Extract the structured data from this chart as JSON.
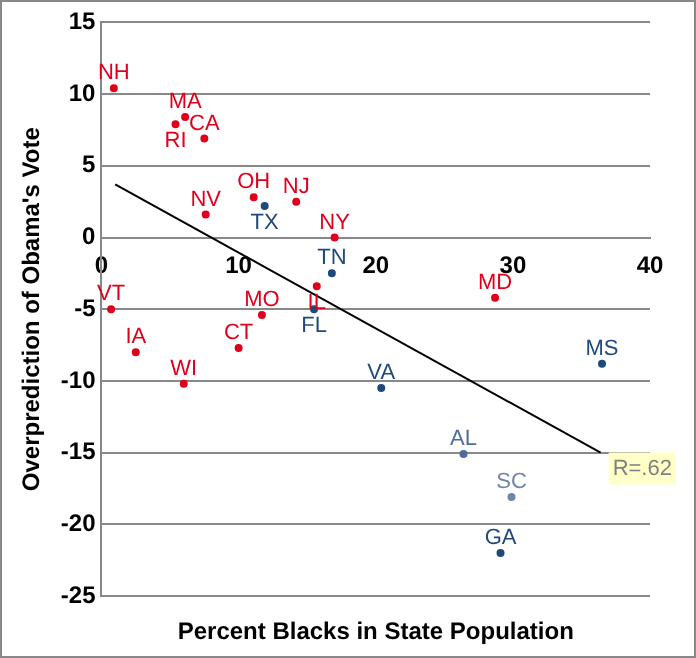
{
  "chart_data": {
    "type": "scatter",
    "xlabel": "Percent Blacks in State Population",
    "ylabel": "Overprediction of Obama's Vote",
    "xlim": [
      0,
      40
    ],
    "xticks": [
      0,
      10,
      20,
      30,
      40
    ],
    "ylim": [
      -25,
      15
    ],
    "yticks": [
      -25,
      -20,
      -15,
      -10,
      -5,
      0,
      5,
      10,
      15
    ],
    "grid": "y",
    "legend": false,
    "series": [
      {
        "name": "NH",
        "color": "#e0001b",
        "x": [
          0.9
        ],
        "values": [
          10.4
        ]
      },
      {
        "name": "MA",
        "color": "#e0001b",
        "x": [
          6.1
        ],
        "values": [
          8.4
        ]
      },
      {
        "name": "RI",
        "color": "#e0001b",
        "x": [
          5.4
        ],
        "values": [
          7.9
        ]
      },
      {
        "name": "CA",
        "color": "#e0001b",
        "x": [
          7.5
        ],
        "values": [
          6.9
        ]
      },
      {
        "name": "NV",
        "color": "#e0001b",
        "x": [
          7.6
        ],
        "values": [
          1.6
        ]
      },
      {
        "name": "OH",
        "color": "#e0001b",
        "x": [
          11.1
        ],
        "values": [
          2.8
        ]
      },
      {
        "name": "TX",
        "color": "#1f497d",
        "x": [
          11.9
        ],
        "values": [
          2.2
        ]
      },
      {
        "name": "NJ",
        "color": "#e0001b",
        "x": [
          14.2
        ],
        "values": [
          2.5
        ]
      },
      {
        "name": "NY",
        "color": "#e0001b",
        "x": [
          17.0
        ],
        "values": [
          0
        ]
      },
      {
        "name": "TN",
        "color": "#1f497d",
        "x": [
          16.8
        ],
        "values": [
          -2.5
        ]
      },
      {
        "name": "IL",
        "color": "#e0001b",
        "x": [
          15.7
        ],
        "values": [
          -3.4
        ]
      },
      {
        "name": "FL",
        "color": "#1f497d",
        "x": [
          15.5
        ],
        "values": [
          -5
        ]
      },
      {
        "name": "MO",
        "color": "#e0001b",
        "x": [
          11.7
        ],
        "values": [
          -5.4
        ]
      },
      {
        "name": "CT",
        "color": "#e0001b",
        "x": [
          10.0
        ],
        "values": [
          -7.7
        ]
      },
      {
        "name": "VT",
        "color": "#e0001b",
        "x": [
          0.7
        ],
        "values": [
          -5
        ]
      },
      {
        "name": "IA",
        "color": "#e0001b",
        "x": [
          2.5
        ],
        "values": [
          -8
        ]
      },
      {
        "name": "WI",
        "color": "#e0001b",
        "x": [
          6.0
        ],
        "values": [
          -10.2
        ]
      },
      {
        "name": "MD",
        "color": "#e0001b",
        "x": [
          28.7
        ],
        "values": [
          -4.2
        ]
      },
      {
        "name": "VA",
        "color": "#1f497d",
        "x": [
          20.4
        ],
        "values": [
          -10.5
        ]
      },
      {
        "name": "MS",
        "color": "#1f497d",
        "x": [
          36.5
        ],
        "values": [
          -8.8
        ]
      },
      {
        "name": "AL",
        "color": "#4f6d9a",
        "x": [
          26.4
        ],
        "values": [
          -15.1
        ]
      },
      {
        "name": "SC",
        "color": "#6f86a8",
        "x": [
          29.9
        ],
        "values": [
          -18.1
        ]
      },
      {
        "name": "GA",
        "color": "#1f497d",
        "x": [
          29.1
        ],
        "values": [
          -22.0
        ]
      },
      {
        "type": "line",
        "color": "#000000",
        "x": [
          1,
          36.4
        ],
        "values": [
          3.7,
          -15
        ]
      }
    ],
    "annotations": [
      {
        "text": "R=.62",
        "x": 36.4,
        "y": -15
      }
    ]
  }
}
